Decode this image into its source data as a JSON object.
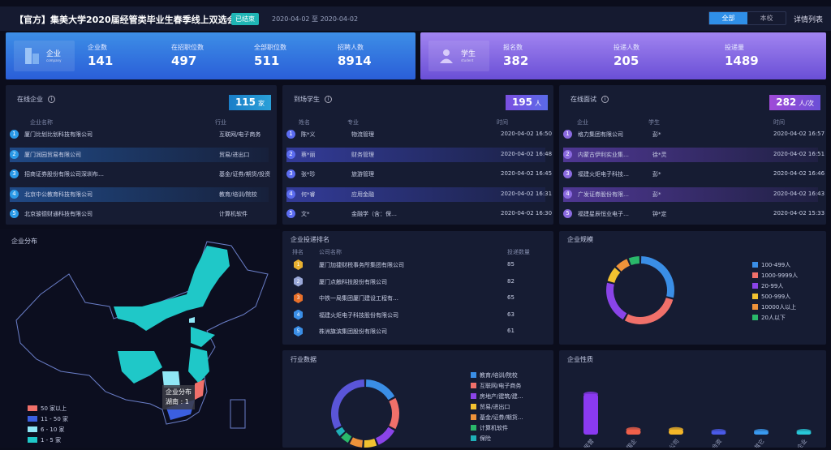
{
  "header": {
    "title": "【官方】集美大学2020届经管类毕业生春季线上双选会",
    "status_badge": "已结束",
    "date_range": "2020-04-02 至 2020-04-02",
    "toggle": [
      "全部",
      "本校"
    ],
    "toggle_active": "全部",
    "detail_link": "详情列表"
  },
  "company_card": {
    "title": "企业",
    "subtitle": "company",
    "stats": [
      {
        "label": "企业数",
        "value": "141"
      },
      {
        "label": "在招职位数",
        "value": "497"
      },
      {
        "label": "全部职位数",
        "value": "511"
      },
      {
        "label": "招聘人数",
        "value": "8914"
      }
    ]
  },
  "student_card": {
    "title": "学生",
    "subtitle": "student",
    "stats": [
      {
        "label": "报名数",
        "value": "382"
      },
      {
        "label": "投递人数",
        "value": "205"
      },
      {
        "label": "投递量",
        "value": "1489"
      }
    ]
  },
  "online_companies": {
    "title": "在线企业",
    "count": "115",
    "unit": "家",
    "columns": [
      "企业名称",
      "行业"
    ],
    "rows": [
      [
        "厦门比划比划科技有限公司",
        "互联网/电子商务"
      ],
      [
        "厦门润园贸易有限公司",
        "贸易/进出口"
      ],
      [
        "招商证券股份有限公司深圳布…",
        "基金/证券/期货/投资"
      ],
      [
        "北京中公教育科技有限公司",
        "教育/培训/院校"
      ],
      [
        "北京骏德财通科技有限公司",
        "计算机软件"
      ]
    ]
  },
  "arrived_students": {
    "title": "到场学生",
    "count": "195",
    "unit": "人",
    "columns": [
      "姓名",
      "专业",
      "时间"
    ],
    "rows": [
      [
        "陈*义",
        "物流管理",
        "2020-04-02 16:50"
      ],
      [
        "蔡*丽",
        "财务管理",
        "2020-04-02 16:48"
      ],
      [
        "张*珍",
        "旅游管理",
        "2020-04-02 16:45"
      ],
      [
        "何*睿",
        "应用金融",
        "2020-04-02 16:31"
      ],
      [
        "文*",
        "金融学（含：保…",
        "2020-04-02 16:30"
      ]
    ]
  },
  "online_interviews": {
    "title": "在线面试",
    "count": "282",
    "unit": "人/次",
    "columns": [
      "企业",
      "学生",
      "时间"
    ],
    "rows": [
      [
        "格力集团有限公司",
        "彭*",
        "2020-04-02 16:57"
      ],
      [
        "内蒙古伊利实业集…",
        "徐*灵",
        "2020-04-02 16:51"
      ],
      [
        "福建火炬电子科技…",
        "彭*",
        "2020-04-02 16:46"
      ],
      [
        "广发证券股份有限…",
        "彭*",
        "2020-04-02 16:43"
      ],
      [
        "福建星辰恒业电子…",
        "钟*定",
        "2020-04-02 15:33"
      ]
    ]
  },
  "distribution_map": {
    "title": "企业分布",
    "tooltip_title": "企业分布",
    "tooltip_value": "湖南 : 1",
    "legend": [
      {
        "label": "50 家以上",
        "color": "#f0706a"
      },
      {
        "label": "11 - 50 家",
        "color": "#3b5fe0"
      },
      {
        "label": "6 - 10 家",
        "color": "#8fe6f5"
      },
      {
        "label": "1 - 5 家",
        "color": "#1fc8c8"
      }
    ]
  },
  "delivery_ranking": {
    "title": "企业投递排名",
    "columns": [
      "排名",
      "公司名称",
      "投递数量"
    ],
    "rows": [
      {
        "rank": "1",
        "name": "厦门加捷财税事务所集团有限公司",
        "count": "85"
      },
      {
        "rank": "2",
        "name": "厦门点触科技股份有限公司",
        "count": "82"
      },
      {
        "rank": "3",
        "name": "中铁一局集团厦门建设工程有…",
        "count": "65"
      },
      {
        "rank": "4",
        "name": "福建火炬电子科技股份有限公司",
        "count": "63"
      },
      {
        "rank": "5",
        "name": "株洲旗滨集团股份有限公司",
        "count": "61"
      }
    ]
  },
  "chart_data": [
    {
      "type": "pie",
      "title": "企业规模",
      "categories": [
        "100-499人",
        "1000-9999人",
        "20-99人",
        "500-999人",
        "10000人以上",
        "20人以下"
      ],
      "values": [
        29,
        29,
        21,
        8,
        7,
        6
      ],
      "colors": [
        "#3a8ee6",
        "#f0706a",
        "#8a44e8",
        "#f2c230",
        "#ee923a",
        "#2ab86a"
      ],
      "legend": "right"
    },
    {
      "type": "pie",
      "title": "行业数据",
      "categories": [
        "教育/培训/院校",
        "互联网/电子商务",
        "房地产/建筑/建…",
        "贸易/进出口",
        "基金/证券/期货…",
        "计算机软件",
        "保险",
        ""
      ],
      "values": [
        17,
        16,
        11,
        7,
        7,
        5,
        4,
        33
      ],
      "colors": [
        "#3a8ee6",
        "#f0706a",
        "#8a44e8",
        "#f2c230",
        "#ee923a",
        "#2ab86a",
        "#1fb0b8",
        "#5a55d8"
      ],
      "legend": "right"
    },
    {
      "type": "bar",
      "title": "企业性质",
      "categories": [
        "民营",
        "国企",
        "上市公司",
        "合资",
        "其它",
        "外资企业"
      ],
      "values": [
        40,
        5,
        5,
        3,
        2,
        2
      ],
      "colors": [
        "#8a3af0",
        "#f0604a",
        "#f4b628",
        "#4a5ae8",
        "#3a9af0",
        "#28c8d8"
      ]
    }
  ]
}
